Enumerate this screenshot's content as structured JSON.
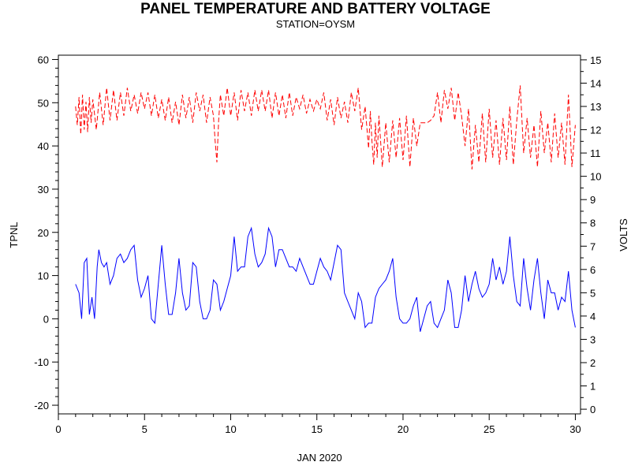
{
  "chart_data": {
    "type": "line",
    "title": "PANEL TEMPERATURE AND BATTERY VOLTAGE",
    "subtitle": "STATION=OYSM",
    "xlabel": "JAN 2020",
    "ylabel_left": "TPNL",
    "ylabel_right": "VOLTS",
    "xlim": [
      0,
      30.3
    ],
    "ylim_left": [
      -22,
      61
    ],
    "ylim_right": [
      -0.2,
      15.2
    ],
    "x_ticks": [
      0,
      5,
      10,
      15,
      20,
      25,
      30
    ],
    "y_left_ticks": [
      -20,
      -10,
      0,
      10,
      20,
      30,
      40,
      50,
      60
    ],
    "y_right_ticks": [
      0,
      1,
      2,
      3,
      4,
      5,
      6,
      7,
      8,
      9,
      10,
      11,
      12,
      13,
      14,
      15
    ],
    "grid": false,
    "series": [
      {
        "axis": "left",
        "color": "#0000ff",
        "style": "solid",
        "x": [
          1.0,
          1.2,
          1.35,
          1.5,
          1.65,
          1.8,
          1.95,
          2.1,
          2.25,
          2.35,
          2.5,
          2.65,
          2.8,
          3.0,
          3.2,
          3.4,
          3.6,
          3.8,
          4.0,
          4.2,
          4.4,
          4.6,
          4.8,
          5.0,
          5.2,
          5.4,
          5.6,
          5.8,
          6.0,
          6.2,
          6.4,
          6.6,
          6.8,
          7.0,
          7.2,
          7.4,
          7.6,
          7.8,
          8.0,
          8.2,
          8.4,
          8.6,
          8.8,
          9.0,
          9.2,
          9.4,
          9.6,
          9.8,
          10.0,
          10.2,
          10.4,
          10.6,
          10.8,
          11.0,
          11.2,
          11.4,
          11.6,
          11.8,
          12.0,
          12.2,
          12.4,
          12.6,
          12.8,
          13.0,
          13.2,
          13.4,
          13.6,
          13.8,
          14.0,
          14.2,
          14.4,
          14.6,
          14.8,
          15.0,
          15.2,
          15.4,
          15.6,
          15.8,
          16.0,
          16.2,
          16.4,
          16.6,
          16.8,
          17.0,
          17.2,
          17.4,
          17.6,
          17.8,
          18.0,
          18.2,
          18.4,
          18.6,
          18.8,
          19.0,
          19.2,
          19.4,
          19.6,
          19.8,
          20.0,
          20.2,
          20.4,
          20.6,
          20.8,
          21.0,
          21.2,
          21.4,
          21.6,
          21.8,
          22.0,
          22.2,
          22.4,
          22.6,
          22.8,
          23.0,
          23.2,
          23.4,
          23.6,
          23.8,
          24.0,
          24.2,
          24.4,
          24.6,
          24.8,
          25.0,
          25.2,
          25.4,
          25.6,
          25.8,
          26.0,
          26.2,
          26.4,
          26.6,
          26.8,
          27.0,
          27.2,
          27.4,
          27.6,
          27.8,
          28.0,
          28.2,
          28.4,
          28.6,
          28.8,
          29.0,
          29.2,
          29.4,
          29.6,
          29.8,
          30.0
        ],
        "y": [
          8,
          6,
          0,
          13,
          14,
          1,
          5,
          0,
          12,
          16,
          13,
          12,
          13,
          8,
          10,
          14,
          15,
          13,
          14,
          16,
          17,
          9,
          5,
          7,
          10,
          0,
          -1,
          8,
          17,
          8,
          1,
          1,
          6,
          14,
          6,
          2,
          3,
          13,
          12,
          4,
          0,
          0,
          2,
          9,
          8,
          2,
          4,
          7,
          10,
          19,
          11,
          12,
          12,
          19,
          21,
          15,
          12,
          13,
          15,
          21,
          19,
          12,
          16,
          16,
          14,
          12,
          12,
          11,
          14,
          12,
          10,
          8,
          8,
          11,
          14,
          12,
          11,
          9,
          13,
          17,
          16,
          6,
          4,
          2,
          0,
          6,
          4,
          -2,
          -1,
          -1,
          5,
          7,
          8,
          9,
          11,
          14,
          5,
          0,
          -1,
          -1,
          0,
          3,
          5,
          -3,
          0,
          3,
          4,
          -1,
          -2,
          0,
          2,
          9,
          6,
          -2,
          -2,
          2,
          10,
          4,
          8,
          11,
          7,
          5,
          6,
          8,
          14,
          9,
          12,
          8,
          11,
          19,
          10,
          4,
          3,
          14,
          7,
          2,
          9,
          14,
          6,
          0,
          9,
          6,
          6,
          2,
          5,
          4,
          11,
          2,
          -2
        ]
      },
      {
        "axis": "right",
        "color": "#ff0000",
        "style": "dashed",
        "x": [
          1.0,
          1.1,
          1.2,
          1.3,
          1.4,
          1.5,
          1.6,
          1.7,
          1.8,
          1.9,
          2.0,
          2.2,
          2.4,
          2.6,
          2.8,
          3.0,
          3.2,
          3.4,
          3.6,
          3.8,
          4.0,
          4.2,
          4.4,
          4.6,
          4.8,
          5.0,
          5.2,
          5.4,
          5.6,
          5.8,
          6.0,
          6.2,
          6.4,
          6.6,
          6.8,
          7.0,
          7.2,
          7.4,
          7.6,
          7.8,
          8.0,
          8.2,
          8.4,
          8.6,
          8.8,
          9.0,
          9.1,
          9.2,
          9.3,
          9.4,
          9.6,
          9.8,
          10.0,
          10.2,
          10.4,
          10.6,
          10.8,
          11.0,
          11.2,
          11.4,
          11.6,
          11.8,
          12.0,
          12.2,
          12.4,
          12.6,
          12.8,
          13.0,
          13.2,
          13.4,
          13.6,
          13.8,
          14.0,
          14.2,
          14.4,
          14.6,
          14.8,
          15.0,
          15.2,
          15.4,
          15.6,
          15.8,
          16.0,
          16.2,
          16.4,
          16.6,
          16.8,
          17.0,
          17.2,
          17.4,
          17.6,
          17.8,
          18.0,
          18.1,
          18.2,
          18.3,
          18.4,
          18.5,
          18.6,
          18.8,
          19.0,
          19.2,
          19.4,
          19.6,
          19.8,
          20.0,
          20.2,
          20.4,
          20.6,
          20.8,
          21.0,
          21.2,
          21.4,
          21.6,
          21.8,
          22.0,
          22.2,
          22.4,
          22.6,
          22.8,
          23.0,
          23.2,
          23.4,
          23.6,
          23.8,
          24.0,
          24.2,
          24.4,
          24.6,
          24.8,
          25.0,
          25.2,
          25.4,
          25.6,
          25.8,
          26.0,
          26.2,
          26.4,
          26.6,
          26.8,
          27.0,
          27.2,
          27.4,
          27.6,
          27.8,
          28.0,
          28.2,
          28.4,
          28.6,
          28.8,
          29.0,
          29.2,
          29.4,
          29.6,
          29.8,
          30.0
        ],
        "y": [
          13.0,
          12.2,
          13.4,
          11.8,
          13.5,
          12.0,
          13.2,
          11.9,
          13.4,
          12.3,
          13.3,
          12.0,
          13.6,
          12.2,
          13.8,
          12.4,
          13.7,
          12.4,
          13.6,
          12.6,
          13.8,
          12.8,
          13.5,
          12.7,
          13.6,
          12.9,
          13.6,
          12.6,
          13.5,
          12.5,
          13.3,
          12.4,
          13.4,
          12.3,
          13.2,
          12.2,
          13.5,
          12.5,
          13.4,
          12.3,
          13.6,
          12.8,
          13.5,
          12.3,
          13.4,
          12.6,
          11.5,
          10.6,
          12.4,
          13.5,
          12.6,
          13.8,
          12.6,
          13.6,
          12.4,
          13.7,
          12.8,
          13.6,
          12.6,
          13.7,
          12.8,
          13.7,
          12.8,
          13.7,
          12.5,
          13.6,
          12.6,
          13.5,
          12.5,
          13.6,
          12.6,
          13.4,
          12.9,
          13.5,
          12.7,
          13.3,
          12.8,
          13.3,
          12.9,
          13.6,
          12.4,
          13.3,
          12.2,
          13.4,
          12.5,
          13.2,
          12.3,
          13.6,
          12.8,
          13.8,
          12.0,
          13.0,
          11.2,
          12.8,
          11.5,
          10.5,
          12.3,
          10.8,
          12.6,
          10.4,
          12.3,
          10.6,
          12.4,
          10.8,
          12.5,
          10.7,
          12.6,
          10.4,
          12.5,
          11.3,
          12.3,
          12.3,
          12.3,
          12.4,
          12.6,
          13.6,
          12.3,
          13.7,
          12.9,
          13.8,
          12.4,
          13.6,
          12.6,
          11.3,
          12.9,
          10.3,
          12.2,
          10.6,
          12.7,
          10.6,
          12.9,
          10.8,
          12.4,
          10.5,
          12.5,
          10.7,
          13.0,
          10.5,
          12.4,
          13.9,
          11.0,
          12.5,
          10.8,
          12.2,
          10.4,
          12.8,
          11.0,
          12.3,
          10.6,
          12.7,
          10.8,
          12.3,
          10.5,
          13.5,
          10.4,
          12.2
        ]
      }
    ]
  }
}
